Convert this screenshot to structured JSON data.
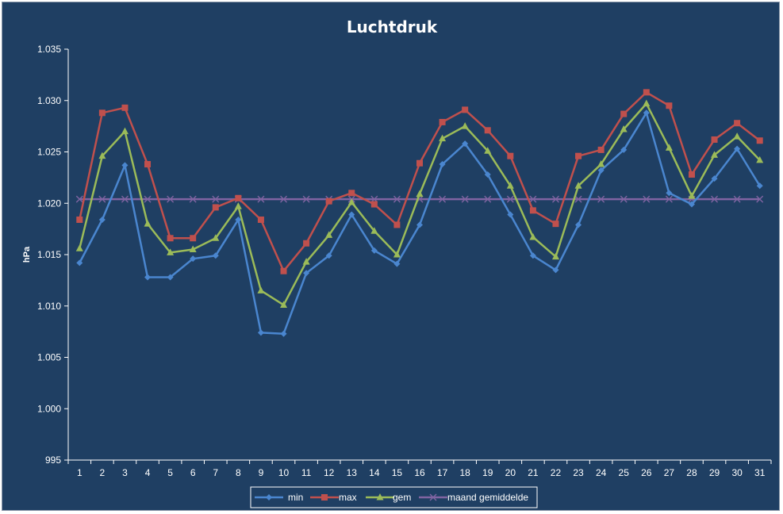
{
  "chart_data": {
    "type": "line",
    "title": "Luchtdruk",
    "xlabel": "",
    "ylabel": "hPa",
    "ylim": [
      995,
      1035
    ],
    "y_tick_labels": [
      "995",
      "1.000",
      "1.005",
      "1.010",
      "1.015",
      "1.020",
      "1.025",
      "1.030",
      "1.035"
    ],
    "y_tick_values": [
      995,
      1000,
      1005,
      1010,
      1015,
      1020,
      1025,
      1030,
      1035
    ],
    "categories": [
      "1",
      "2",
      "3",
      "4",
      "5",
      "6",
      "7",
      "8",
      "9",
      "10",
      "11",
      "12",
      "13",
      "14",
      "15",
      "16",
      "17",
      "18",
      "19",
      "20",
      "21",
      "22",
      "23",
      "24",
      "25",
      "26",
      "27",
      "28",
      "29",
      "30",
      "31"
    ],
    "grid": false,
    "legend_position": "bottom",
    "series": [
      {
        "name": "min",
        "color": "#4a86cf",
        "marker": "diamond",
        "values": [
          1014.2,
          1018.4,
          1023.7,
          1012.8,
          1012.8,
          1014.6,
          1014.9,
          1018.4,
          1007.4,
          1007.3,
          1013.2,
          1014.9,
          1018.9,
          1015.4,
          1014.1,
          1017.9,
          1023.8,
          1025.8,
          1022.8,
          1018.9,
          1014.9,
          1013.5,
          1017.9,
          1023.2,
          1025.2,
          1028.8,
          1021.0,
          1019.9,
          1022.4,
          1025.3,
          1021.7
        ]
      },
      {
        "name": "max",
        "color": "#c0504d",
        "marker": "square",
        "values": [
          1018.4,
          1028.8,
          1029.3,
          1023.8,
          1016.6,
          1016.6,
          1019.6,
          1020.5,
          1018.4,
          1013.4,
          1016.1,
          1020.2,
          1021.0,
          1019.9,
          1017.9,
          1023.9,
          1027.9,
          1029.1,
          1027.1,
          1024.6,
          1019.3,
          1018.0,
          1024.6,
          1025.2,
          1028.7,
          1030.8,
          1029.5,
          1022.8,
          1026.2,
          1027.8,
          1026.1
        ]
      },
      {
        "name": "gem",
        "color": "#9bbb59",
        "marker": "triangle",
        "values": [
          1015.6,
          1024.6,
          1027.0,
          1018.0,
          1015.2,
          1015.5,
          1016.6,
          1019.7,
          1011.5,
          1010.1,
          1014.3,
          1016.9,
          1020.1,
          1017.3,
          1015.0,
          1020.9,
          1026.3,
          1027.5,
          1025.1,
          1021.7,
          1016.7,
          1014.8,
          1021.7,
          1023.8,
          1027.2,
          1029.7,
          1025.4,
          1020.7,
          1024.7,
          1026.5,
          1024.2
        ]
      },
      {
        "name": "maand gemiddelde",
        "color": "#8064a2",
        "marker": "x",
        "values": [
          1020.4,
          1020.4,
          1020.4,
          1020.4,
          1020.4,
          1020.4,
          1020.4,
          1020.4,
          1020.4,
          1020.4,
          1020.4,
          1020.4,
          1020.4,
          1020.4,
          1020.4,
          1020.4,
          1020.4,
          1020.4,
          1020.4,
          1020.4,
          1020.4,
          1020.4,
          1020.4,
          1020.4,
          1020.4,
          1020.4,
          1020.4,
          1020.4,
          1020.4,
          1020.4,
          1020.4
        ]
      }
    ]
  }
}
